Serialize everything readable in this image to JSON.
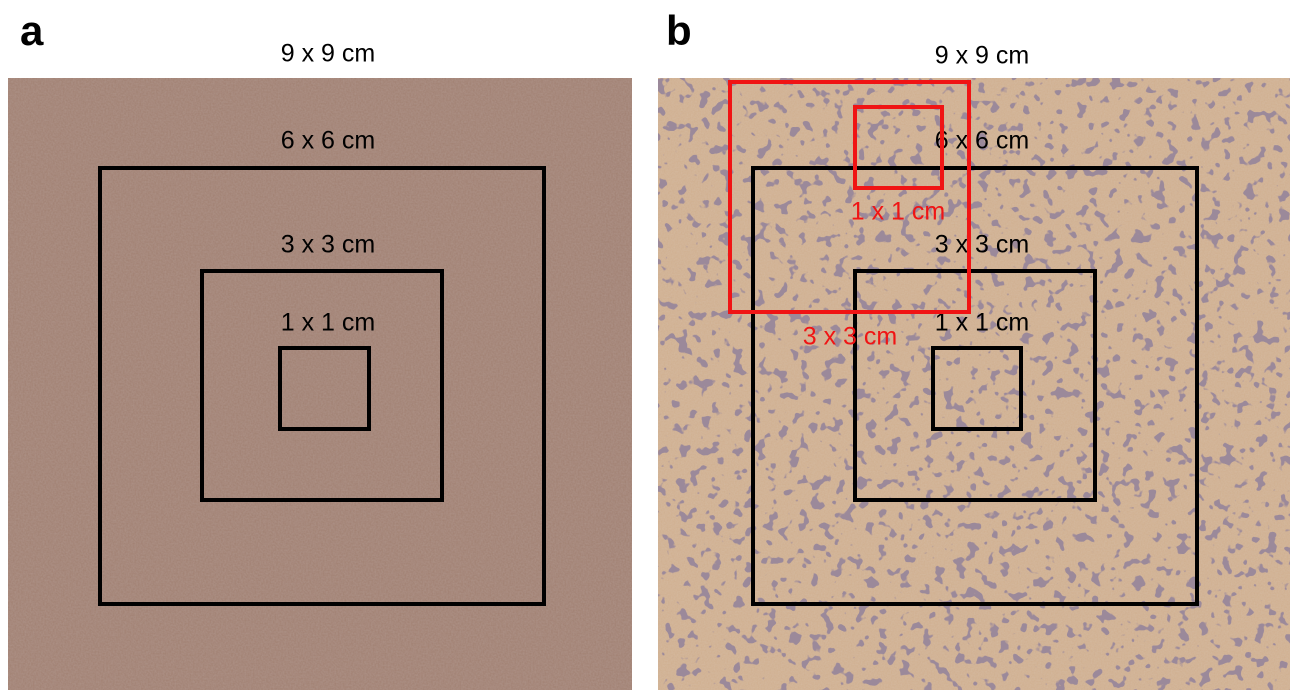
{
  "panels": [
    {
      "label": "a",
      "title": "9 x 9 cm",
      "boxes": [
        {
          "label": "6 x 6 cm"
        },
        {
          "label": "3 x 3 cm"
        },
        {
          "label": "1 x 1 cm"
        }
      ]
    },
    {
      "label": "b",
      "title": "9 x 9 cm",
      "boxes": [
        {
          "label": "6 x 6 cm"
        },
        {
          "label": "3 x 3 cm"
        },
        {
          "label": "1 x 1 cm"
        }
      ],
      "red_boxes": [
        {
          "label": "1 x 1 cm"
        },
        {
          "label": "3 x 3 cm"
        }
      ]
    }
  ]
}
